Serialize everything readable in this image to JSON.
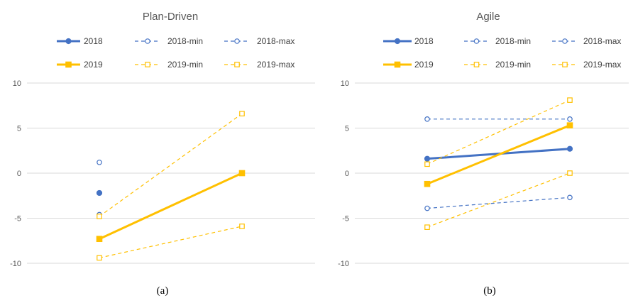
{
  "chart_data": [
    {
      "type": "line",
      "title": "Plan-Driven",
      "caption": "(a)",
      "x": [
        1,
        2
      ],
      "ylim": [
        -10,
        10
      ],
      "yticks": [
        10,
        5,
        0,
        -5,
        -10
      ],
      "grid": true,
      "legend_position": "top",
      "series": [
        {
          "name": "2018",
          "values": [
            -2.2,
            null
          ],
          "color": "#4472C4",
          "style": "solid",
          "marker": "circle-filled"
        },
        {
          "name": "2018-min",
          "values": [
            -4.6,
            null
          ],
          "color": "#4472C4",
          "style": "dashed",
          "marker": "circle-open"
        },
        {
          "name": "2018-max",
          "values": [
            1.2,
            null
          ],
          "color": "#4472C4",
          "style": "dashed",
          "marker": "circle-open"
        },
        {
          "name": "2019",
          "values": [
            -7.3,
            0.0
          ],
          "color": "#FFC000",
          "style": "solid",
          "marker": "square-filled"
        },
        {
          "name": "2019-min",
          "values": [
            -9.4,
            -5.9
          ],
          "color": "#FFC000",
          "style": "dashed",
          "marker": "square-open"
        },
        {
          "name": "2019-max",
          "values": [
            -4.8,
            6.6
          ],
          "color": "#FFC000",
          "style": "dashed",
          "marker": "square-open"
        }
      ]
    },
    {
      "type": "line",
      "title": "Agile",
      "caption": "(b)",
      "x": [
        1,
        2
      ],
      "ylim": [
        -10,
        10
      ],
      "yticks": [
        10,
        5,
        0,
        -5,
        -10
      ],
      "grid": true,
      "legend_position": "top",
      "series": [
        {
          "name": "2018",
          "values": [
            1.6,
            2.7
          ],
          "color": "#4472C4",
          "style": "solid",
          "marker": "circle-filled"
        },
        {
          "name": "2018-min",
          "values": [
            -3.9,
            -2.7
          ],
          "color": "#4472C4",
          "style": "dashed",
          "marker": "circle-open"
        },
        {
          "name": "2018-max",
          "values": [
            6.0,
            6.0
          ],
          "color": "#4472C4",
          "style": "dashed",
          "marker": "circle-open"
        },
        {
          "name": "2019",
          "values": [
            -1.2,
            5.3
          ],
          "color": "#FFC000",
          "style": "solid",
          "marker": "square-filled"
        },
        {
          "name": "2019-min",
          "values": [
            -6.0,
            0.0
          ],
          "color": "#FFC000",
          "style": "dashed",
          "marker": "square-open"
        },
        {
          "name": "2019-max",
          "values": [
            1.0,
            8.1
          ],
          "color": "#FFC000",
          "style": "dashed",
          "marker": "square-open"
        }
      ]
    }
  ]
}
